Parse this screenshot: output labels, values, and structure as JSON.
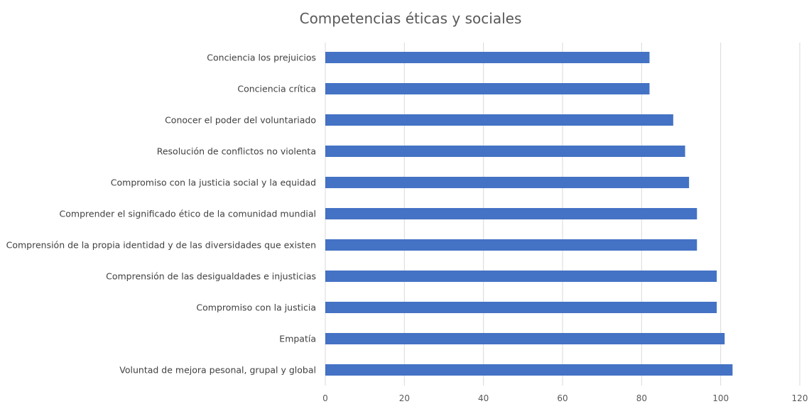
{
  "chart_data": {
    "type": "bar",
    "orientation": "horizontal",
    "title": "Competencias éticas y sociales",
    "xlabel": "",
    "ylabel": "",
    "categories": [
      "Conciencia los prejuicios",
      "Conciencia crítica",
      "Conocer el poder del voluntariado",
      "Resolución de conflictos no violenta",
      "Compromiso con la justicia social y la equidad",
      "Comprender el significado ético de la comunidad mundial",
      "Comprensión de la propia identidad y de las diversidades que existen",
      "Comprensión de las desigualdades e injusticias",
      "Compromiso con la justicia",
      "Empatía",
      "Voluntad de mejora pesonal, grupal y global"
    ],
    "values": [
      82,
      82,
      88,
      91,
      92,
      94,
      94,
      99,
      99,
      101,
      103
    ],
    "xlim": [
      0,
      120
    ],
    "xticks": [
      0,
      20,
      40,
      60,
      80,
      100,
      120
    ],
    "grid": true,
    "legend": "none",
    "bar_color": "#4472C4"
  }
}
